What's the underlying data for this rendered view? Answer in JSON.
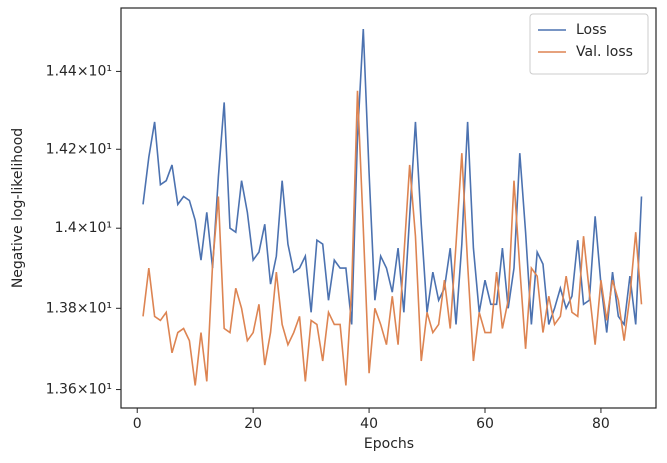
{
  "chart_data": {
    "type": "line",
    "xlabel": "Epochs",
    "ylabel": "Negative log-likelihood",
    "x": [
      1,
      2,
      3,
      4,
      5,
      6,
      7,
      8,
      9,
      10,
      11,
      12,
      13,
      14,
      15,
      16,
      17,
      18,
      19,
      20,
      21,
      22,
      23,
      24,
      25,
      26,
      27,
      28,
      29,
      30,
      31,
      32,
      33,
      34,
      35,
      36,
      37,
      38,
      39,
      40,
      41,
      42,
      43,
      44,
      45,
      46,
      47,
      48,
      49,
      50,
      51,
      52,
      53,
      54,
      55,
      56,
      57,
      58,
      59,
      60,
      61,
      62,
      63,
      64,
      65,
      66,
      67,
      68,
      69,
      70,
      71,
      72,
      73,
      74,
      75,
      76,
      77,
      78,
      79,
      80,
      81,
      82,
      83,
      84,
      85,
      86,
      87
    ],
    "series": [
      {
        "name": "Loss",
        "color": "#4c72b0",
        "values": [
          14.06,
          14.18,
          14.27,
          14.11,
          14.12,
          14.16,
          14.06,
          14.08,
          14.07,
          14.02,
          13.92,
          14.04,
          13.9,
          14.13,
          14.32,
          14.0,
          13.99,
          14.12,
          14.04,
          13.92,
          13.94,
          14.01,
          13.86,
          13.93,
          14.12,
          13.96,
          13.89,
          13.9,
          13.93,
          13.79,
          13.97,
          13.96,
          13.82,
          13.92,
          13.9,
          13.9,
          13.76,
          14.23,
          14.51,
          14.14,
          13.82,
          13.93,
          13.9,
          13.84,
          13.95,
          13.79,
          14.03,
          14.27,
          14.01,
          13.79,
          13.89,
          13.82,
          13.85,
          13.95,
          13.76,
          13.96,
          14.27,
          13.95,
          13.79,
          13.87,
          13.81,
          13.81,
          13.95,
          13.8,
          13.9,
          14.19,
          13.99,
          13.76,
          13.94,
          13.91,
          13.76,
          13.8,
          13.85,
          13.8,
          13.83,
          13.97,
          13.81,
          13.82,
          14.03,
          13.86,
          13.74,
          13.89,
          13.78,
          13.76,
          13.88,
          13.76,
          14.08
        ]
      },
      {
        "name": "Val. loss",
        "color": "#dd8452",
        "values": [
          13.78,
          13.9,
          13.78,
          13.77,
          13.79,
          13.69,
          13.74,
          13.75,
          13.72,
          13.61,
          13.74,
          13.62,
          13.91,
          14.08,
          13.75,
          13.74,
          13.85,
          13.8,
          13.72,
          13.74,
          13.81,
          13.66,
          13.74,
          13.89,
          13.76,
          13.71,
          13.74,
          13.78,
          13.62,
          13.77,
          13.76,
          13.67,
          13.79,
          13.76,
          13.76,
          13.61,
          13.85,
          14.35,
          14.0,
          13.64,
          13.8,
          13.76,
          13.71,
          13.83,
          13.71,
          13.93,
          14.16,
          13.98,
          13.67,
          13.79,
          13.74,
          13.76,
          13.87,
          13.75,
          13.96,
          14.19,
          13.91,
          13.67,
          13.79,
          13.74,
          13.74,
          13.89,
          13.75,
          13.82,
          14.12,
          13.9,
          13.7,
          13.9,
          13.88,
          13.74,
          13.83,
          13.76,
          13.78,
          13.88,
          13.79,
          13.78,
          13.98,
          13.84,
          13.71,
          13.87,
          13.77,
          13.87,
          13.82,
          13.72,
          13.83,
          13.99,
          13.81
        ]
      }
    ],
    "xlim": [
      -2.8,
      89.5
    ],
    "xticks": [
      0,
      20,
      40,
      60,
      80
    ],
    "ylim": [
      13.555,
      14.565
    ],
    "ylog": true,
    "yticks": [
      {
        "value": 13.6,
        "label": "1.36×10¹"
      },
      {
        "value": 13.8,
        "label": "1.38×10¹"
      },
      {
        "value": 14.0,
        "label": "1.4×10¹"
      },
      {
        "value": 14.2,
        "label": "1.42×10¹"
      },
      {
        "value": 14.4,
        "label": "1.44×10¹"
      }
    ],
    "grid": false,
    "legend": "upper right"
  }
}
